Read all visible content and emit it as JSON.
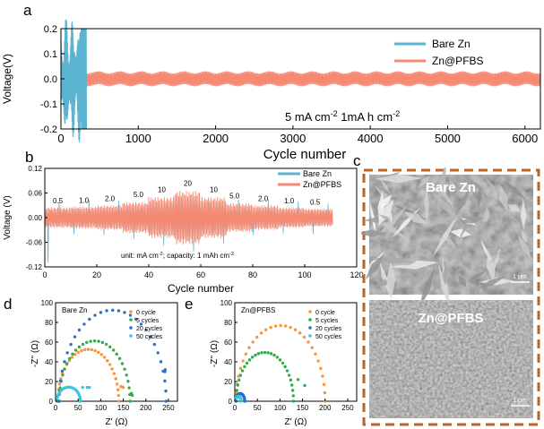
{
  "panels": {
    "a": {
      "letter": "a",
      "ylabel": "Voltage(V)",
      "xlabel": "Cycle number",
      "annotation": {
        "p1": "5 mA cm",
        "s1": "-2",
        "p2": " 1mA h cm",
        "s2": "-2"
      },
      "xlim": [
        0,
        6200
      ],
      "ylim": [
        -0.2,
        0.2
      ],
      "xticks": [
        "0",
        "1000",
        "2000",
        "3000",
        "4000",
        "5000",
        "6000"
      ],
      "yticks": [
        "0.2",
        "0.1",
        "0.0",
        "-0.1",
        "-0.2"
      ],
      "legend": [
        "Bare Zn",
        "Zn@PFBS"
      ]
    },
    "b": {
      "letter": "b",
      "ylabel": "Voltage (V)",
      "xlabel": "Cycle number",
      "note": {
        "p1": "unit: mA cm",
        "s1": "-2",
        "p2": "; capacity: 1 mAh cm",
        "s2": "-2"
      },
      "xlim": [
        0,
        120
      ],
      "ylim": [
        -0.12,
        0.12
      ],
      "xticks": [
        "0",
        "20",
        "40",
        "60",
        "80",
        "100",
        "120"
      ],
      "yticks": [
        "0.12",
        "0.06",
        "0.00",
        "-0.06",
        "-0.12"
      ],
      "legend": [
        "Bare Zn",
        "Zn@PFBS"
      ],
      "rates": [
        "0.5",
        "1.0",
        "2.0",
        "5.0",
        "10",
        "20",
        "10",
        "5.0",
        "2.0",
        "1.0",
        "0.5"
      ]
    },
    "c": {
      "letter": "c",
      "top_label": "Bare Zn",
      "bottom_label": "Zn@PFBS",
      "scale": "1 μm"
    },
    "d": {
      "letter": "d",
      "title": "Bare Zn",
      "ylabel": "-Z'' (Ω)",
      "xlabel": "Z' (Ω)",
      "xticks": [
        "0",
        "50",
        "100",
        "150",
        "200",
        "250"
      ],
      "yticks": [
        "0",
        "20",
        "40",
        "60",
        "80",
        "100"
      ],
      "legend": [
        "0 cycle",
        "5 cycles",
        "20 cycles",
        "50 cycles"
      ]
    },
    "e": {
      "letter": "e",
      "title": "Zn@PFBS",
      "ylabel": "-Z'' (Ω)",
      "xlabel": "Z' (Ω)",
      "xticks": [
        "0",
        "50",
        "100",
        "150",
        "200",
        "250"
      ],
      "yticks": [
        "0",
        "20",
        "40",
        "60",
        "80",
        "100"
      ],
      "legend": [
        "0 cycle",
        "5 cycles",
        "20 cycles",
        "50 cycles"
      ]
    }
  },
  "colors": {
    "bare": "#5ab4cf",
    "pfbs": "#f58a73",
    "orange": "#f7963a",
    "green": "#2fae4a",
    "blue": "#2a72c9",
    "cyan": "#3ec6e0",
    "frame": "#b9652a"
  },
  "chart_data": [
    {
      "type": "line",
      "panel": "a",
      "xlabel": "Cycle number",
      "ylabel": "Voltage(V)",
      "xlim": [
        0,
        6200
      ],
      "ylim": [
        -0.2,
        0.2
      ],
      "series": [
        {
          "name": "Bare Zn",
          "x": [
            0,
            330
          ],
          "amplitude_start": 0.17,
          "amplitude_end": 0.2,
          "fails_at_cycle": 330
        },
        {
          "name": "Zn@PFBS",
          "x": [
            0,
            6200
          ],
          "amplitude": 0.03
        }
      ]
    },
    {
      "type": "line",
      "panel": "b",
      "xlabel": "Cycle number",
      "ylabel": "Voltage (V)",
      "xlim": [
        0,
        120
      ],
      "ylim": [
        -0.12,
        0.12
      ],
      "rate_steps": [
        {
          "rate": 0.5,
          "x0": 0,
          "x1": 10,
          "amp": 0.025
        },
        {
          "rate": 1.0,
          "x0": 10,
          "x1": 20,
          "amp": 0.027
        },
        {
          "rate": 2.0,
          "x0": 20,
          "x1": 30,
          "amp": 0.03
        },
        {
          "rate": 5.0,
          "x0": 30,
          "x1": 40,
          "amp": 0.038
        },
        {
          "rate": 10,
          "x0": 40,
          "x1": 50,
          "amp": 0.05
        },
        {
          "rate": 20,
          "x0": 50,
          "x1": 60,
          "amp": 0.065
        },
        {
          "rate": 10,
          "x0": 60,
          "x1": 70,
          "amp": 0.05
        },
        {
          "rate": 5.0,
          "x0": 70,
          "x1": 80,
          "amp": 0.035
        },
        {
          "rate": 2.0,
          "x0": 80,
          "x1": 90,
          "amp": 0.03
        },
        {
          "rate": 1.0,
          "x0": 90,
          "x1": 100,
          "amp": 0.025
        },
        {
          "rate": 0.5,
          "x0": 100,
          "x1": 111,
          "amp": 0.022
        }
      ],
      "series": [
        {
          "name": "Bare Zn"
        },
        {
          "name": "Zn@PFBS"
        }
      ]
    },
    {
      "type": "scatter",
      "panel": "d",
      "xlabel": "Z' (Ω)",
      "ylabel": "-Z'' (Ω)",
      "xlim": [
        0,
        270
      ],
      "ylim": [
        0,
        100
      ],
      "series": [
        {
          "name": "0 cycle",
          "R0": 5,
          "R1": 140,
          "tail": [
            [
              145,
              15
            ],
            [
              150,
              14
            ]
          ]
        },
        {
          "name": "5 cycles",
          "R0": 8,
          "R1": 165,
          "tail": [
            [
              168,
              8
            ],
            [
              170,
              6
            ]
          ]
        },
        {
          "name": "20 cycles",
          "R0": 8,
          "R1": 245,
          "tail": [
            [
              243,
              32
            ],
            [
              242,
              30
            ]
          ]
        },
        {
          "name": "50 cycles",
          "R0": 3,
          "R1": 55,
          "tail": [
            [
              60,
              14
            ],
            [
              70,
              14
            ],
            [
              75,
              14
            ]
          ]
        }
      ]
    },
    {
      "type": "scatter",
      "panel": "e",
      "xlabel": "Z' (Ω)",
      "ylabel": "-Z'' (Ω)",
      "xlim": [
        0,
        270
      ],
      "ylim": [
        0,
        100
      ],
      "series": [
        {
          "name": "0 cycle",
          "R0": 3,
          "R1": 200
        },
        {
          "name": "5 cycles",
          "R0": 3,
          "R1": 130,
          "tail": [
            [
              140,
              22
            ],
            [
              155,
              16
            ]
          ]
        },
        {
          "name": "20 cycles",
          "R0": 2,
          "R1": 22
        },
        {
          "name": "50 cycles",
          "R0": 2,
          "R1": 14
        }
      ]
    }
  ]
}
